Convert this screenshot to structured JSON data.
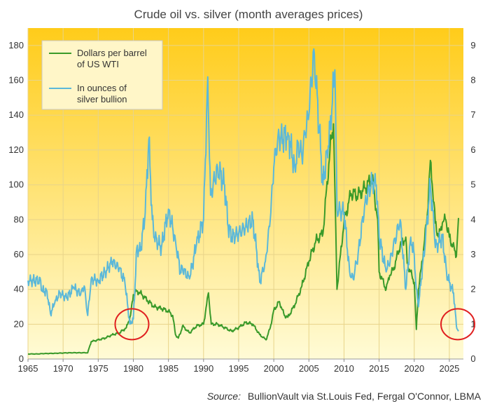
{
  "colors": {
    "oil": "#3A9A2A",
    "silver": "#5BB8D9",
    "highlight": "#E02020",
    "grid": "#E8D48A",
    "bg_top": "#FFCC1A",
    "bg_bottom": "#FFFBD6"
  },
  "chart_data": {
    "type": "line",
    "title": "Crude oil vs. silver (month averages prices)",
    "source_label": "Source:",
    "source_text": "BullionVault via St.Louis Fed, Fergal O'Connor, LBMA",
    "x_ticks": [
      "1965",
      "1970",
      "1975",
      "1980",
      "1985",
      "1990",
      "1995",
      "2000",
      "2005",
      "2010",
      "2015",
      "2020",
      "2025"
    ],
    "y_left_ticks": [
      "0",
      "20",
      "40",
      "60",
      "80",
      "100",
      "120",
      "140",
      "160",
      "180"
    ],
    "y_right_ticks": [
      "0",
      "1",
      "2",
      "3",
      "4",
      "5",
      "6",
      "7",
      "8",
      "9"
    ],
    "xlim": [
      1965,
      2027
    ],
    "ylim_left": [
      0,
      190
    ],
    "ylim_right": [
      0,
      9.5
    ],
    "legend": {
      "position": "top-left",
      "entries": [
        {
          "line1": "Dollars per barrel",
          "line2": "of US WTI",
          "series": "oil"
        },
        {
          "line1": "In ounces of",
          "line2": "silver bullion",
          "series": "silver"
        }
      ]
    },
    "highlights": [
      {
        "x": 1979.8,
        "y_left": 20,
        "label": "1980 crossover"
      },
      {
        "x": 2026.2,
        "y_left": 20,
        "label": "2026 crossover"
      }
    ],
    "series": [
      {
        "name": "Dollars per barrel of US WTI",
        "key": "oil",
        "axis": "left",
        "points": [
          [
            1965,
            2.9
          ],
          [
            1966.5,
            2.9
          ],
          [
            1967,
            3.1
          ],
          [
            1969,
            3.3
          ],
          [
            1971,
            3.6
          ],
          [
            1973.5,
            3.6
          ],
          [
            1974,
            10
          ],
          [
            1976,
            12
          ],
          [
            1977,
            14
          ],
          [
            1978,
            14.9
          ],
          [
            1979,
            18
          ],
          [
            1979.6,
            25
          ],
          [
            1980,
            37
          ],
          [
            1980.5,
            39
          ],
          [
            1981,
            38
          ],
          [
            1982,
            33.6
          ],
          [
            1983,
            30
          ],
          [
            1984,
            29
          ],
          [
            1985,
            27.5
          ],
          [
            1985.6,
            25
          ],
          [
            1986,
            14
          ],
          [
            1986.4,
            12
          ],
          [
            1986.8,
            16
          ],
          [
            1987,
            19
          ],
          [
            1988,
            15
          ],
          [
            1989,
            19
          ],
          [
            1990,
            20
          ],
          [
            1990.7,
            38
          ],
          [
            1991.1,
            20
          ],
          [
            1992,
            20
          ],
          [
            1993,
            18
          ],
          [
            1994,
            16
          ],
          [
            1995,
            18
          ],
          [
            1996,
            21
          ],
          [
            1997,
            20
          ],
          [
            1998,
            14
          ],
          [
            1998.9,
            11
          ],
          [
            1999.5,
            18
          ],
          [
            2000,
            28
          ],
          [
            2000.8,
            33
          ],
          [
            2001.5,
            25
          ],
          [
            2002,
            24
          ],
          [
            2003,
            31
          ],
          [
            2004,
            42
          ],
          [
            2005,
            56
          ],
          [
            2006,
            68
          ],
          [
            2007,
            72
          ],
          [
            2008,
            120
          ],
          [
            2008.5,
            135
          ],
          [
            2009,
            40
          ],
          [
            2009.5,
            60
          ],
          [
            2010,
            79
          ],
          [
            2011,
            95
          ],
          [
            2012,
            94
          ],
          [
            2013,
            98
          ],
          [
            2014,
            104
          ],
          [
            2014.8,
            80
          ],
          [
            2015,
            50
          ],
          [
            2016,
            40
          ],
          [
            2016.5,
            48
          ],
          [
            2017,
            51
          ],
          [
            2018,
            65
          ],
          [
            2018.8,
            70
          ],
          [
            2019,
            55
          ],
          [
            2020,
            44
          ],
          [
            2020.3,
            17
          ],
          [
            2020.6,
            40
          ],
          [
            2021,
            52
          ],
          [
            2021.8,
            80
          ],
          [
            2022.3,
            114
          ],
          [
            2022.8,
            90
          ],
          [
            2023,
            78
          ],
          [
            2023.5,
            70
          ],
          [
            2024,
            78
          ],
          [
            2024.5,
            80
          ],
          [
            2025,
            70
          ],
          [
            2025.5,
            65
          ],
          [
            2026,
            59
          ],
          [
            2026.3,
            81
          ]
        ]
      },
      {
        "name": "In ounces of silver bullion",
        "key": "silver",
        "axis": "right",
        "points": [
          [
            1965,
            2.25
          ],
          [
            1966.8,
            2.25
          ],
          [
            1967,
            1.95
          ],
          [
            1967.7,
            1.95
          ],
          [
            1968.2,
            1.3
          ],
          [
            1968.8,
            1.6
          ],
          [
            1969.5,
            1.9
          ],
          [
            1970.5,
            1.75
          ],
          [
            1971.5,
            2.05
          ],
          [
            1972.5,
            1.85
          ],
          [
            1973,
            2.1
          ],
          [
            1973.5,
            1.25
          ],
          [
            1974,
            2.3
          ],
          [
            1975,
            2.25
          ],
          [
            1976,
            2.5
          ],
          [
            1977,
            2.8
          ],
          [
            1978,
            2.6
          ],
          [
            1978.8,
            2.2
          ],
          [
            1979.5,
            1.0
          ],
          [
            1980,
            1.15
          ],
          [
            1980.5,
            3.2
          ],
          [
            1981,
            3.1
          ],
          [
            1981.7,
            4.2
          ],
          [
            1982.2,
            6.3
          ],
          [
            1982.7,
            4.0
          ],
          [
            1983,
            3.5
          ],
          [
            1984,
            3.2
          ],
          [
            1985,
            4.3
          ],
          [
            1986,
            3.4
          ],
          [
            1986.7,
            2.5
          ],
          [
            1987,
            2.6
          ],
          [
            1988,
            2.3
          ],
          [
            1989,
            3.3
          ],
          [
            1990,
            4.0
          ],
          [
            1990.6,
            8.1
          ],
          [
            1991,
            4.7
          ],
          [
            1992,
            5.5
          ],
          [
            1993,
            5.0
          ],
          [
            1993.5,
            3.8
          ],
          [
            1994,
            3.5
          ],
          [
            1995,
            3.6
          ],
          [
            1996,
            3.8
          ],
          [
            1997,
            4.0
          ],
          [
            1997.5,
            3.2
          ],
          [
            1998,
            2.2
          ],
          [
            1998.8,
            2.8
          ],
          [
            1999.5,
            4.0
          ],
          [
            2000,
            5.5
          ],
          [
            2000.6,
            6.4
          ],
          [
            2001.3,
            6.3
          ],
          [
            2002,
            6.5
          ],
          [
            2003,
            5.5
          ],
          [
            2003.5,
            6.2
          ],
          [
            2004,
            5.8
          ],
          [
            2004.5,
            6.5
          ],
          [
            2005,
            7.0
          ],
          [
            2005.7,
            8.9
          ],
          [
            2006.5,
            6.5
          ],
          [
            2007,
            5.0
          ],
          [
            2007.6,
            6.0
          ],
          [
            2008,
            6.6
          ],
          [
            2008.7,
            8.3
          ],
          [
            2009,
            4.3
          ],
          [
            2010,
            4.2
          ],
          [
            2010.8,
            2.5
          ],
          [
            2011.3,
            2.3
          ],
          [
            2012,
            3.0
          ],
          [
            2013,
            4.5
          ],
          [
            2014,
            5.1
          ],
          [
            2014.6,
            5.0
          ],
          [
            2015,
            3.5
          ],
          [
            2016,
            2.5
          ],
          [
            2016.8,
            3.0
          ],
          [
            2017,
            3.2
          ],
          [
            2018,
            4.0
          ],
          [
            2018.8,
            2.0
          ],
          [
            2019.5,
            3.5
          ],
          [
            2020,
            3.0
          ],
          [
            2020.3,
            2.0
          ],
          [
            2020.6,
            1.5
          ],
          [
            2021,
            2.3
          ],
          [
            2021.6,
            3.4
          ],
          [
            2022.3,
            5.0
          ],
          [
            2022.8,
            3.8
          ],
          [
            2023,
            3.2
          ],
          [
            2024,
            3.5
          ],
          [
            2024.6,
            2.5
          ],
          [
            2025,
            2.2
          ],
          [
            2025.6,
            1.9
          ],
          [
            2026,
            0.95
          ],
          [
            2026.3,
            0.8
          ]
        ]
      }
    ]
  }
}
